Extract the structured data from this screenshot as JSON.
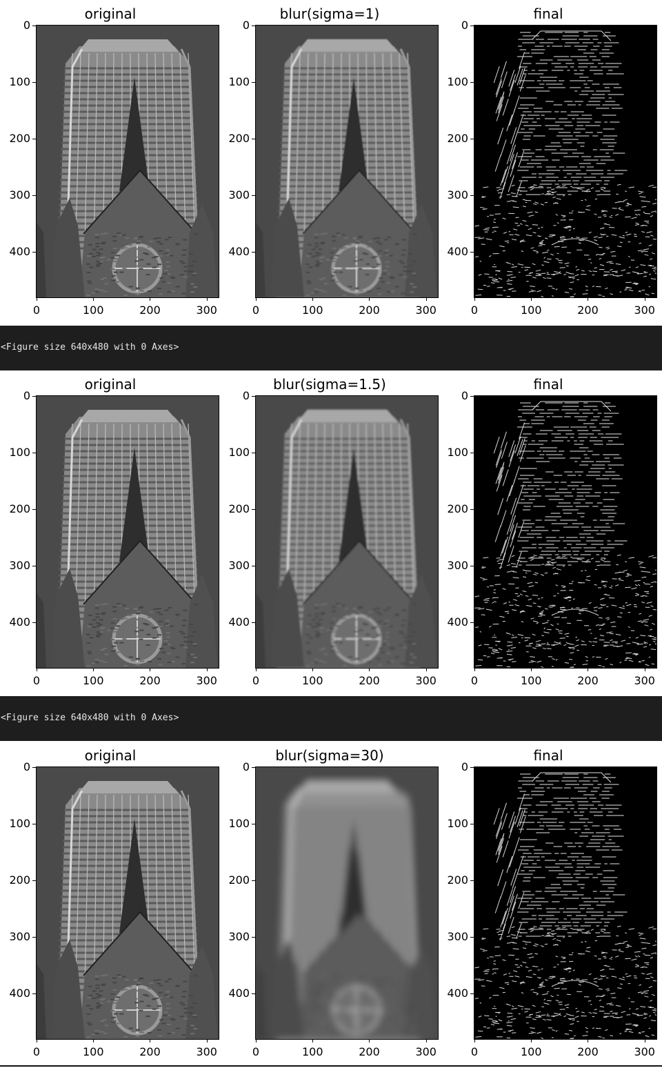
{
  "figures": [
    {
      "panels": [
        {
          "title": "original",
          "kind": "original"
        },
        {
          "title": "blur(sigma=1)",
          "kind": "blur",
          "sigma": 1
        },
        {
          "title": "final",
          "kind": "edges"
        }
      ]
    },
    {
      "panels": [
        {
          "title": "original",
          "kind": "original"
        },
        {
          "title": "blur(sigma=1.5)",
          "kind": "blur",
          "sigma": 1.5
        },
        {
          "title": "final",
          "kind": "edges"
        }
      ]
    },
    {
      "panels": [
        {
          "title": "original",
          "kind": "original"
        },
        {
          "title": "blur(sigma=30)",
          "kind": "blur",
          "sigma": 30
        },
        {
          "title": "final",
          "kind": "edges"
        }
      ]
    }
  ],
  "axes": {
    "yticks": [
      "0",
      "100",
      "200",
      "300",
      "400"
    ],
    "xticks": [
      "0",
      "100",
      "200",
      "300"
    ],
    "ytick_values": [
      0,
      100,
      200,
      300,
      400
    ],
    "xtick_values": [
      0,
      100,
      200,
      300
    ],
    "image_width": 321,
    "image_height": 481
  },
  "outputs": [
    {
      "text": "<Figure size 640x480 with 0 Axes>"
    },
    {
      "text": "<Figure size 640x480 with 0 Axes>"
    }
  ],
  "colors": {
    "output_bg": "#1e1e1e",
    "output_text": "#e8e8e8"
  }
}
